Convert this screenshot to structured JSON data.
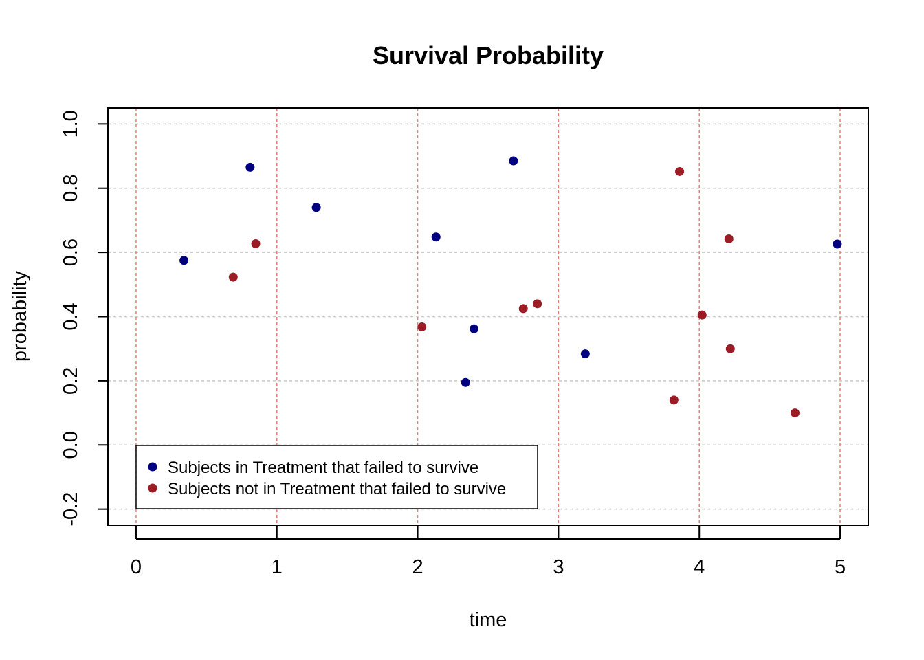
{
  "chart_data": {
    "type": "scatter",
    "title": "Survival Probability",
    "xlabel": "time",
    "ylabel": "probability",
    "xlim": [
      -0.2,
      5.2
    ],
    "ylim": [
      -0.25,
      1.05
    ],
    "x_ticks": [
      "0",
      "1",
      "2",
      "3",
      "4",
      "5"
    ],
    "y_ticks": [
      "-0.2",
      "0.0",
      "0.2",
      "0.4",
      "0.6",
      "0.8",
      "1.0"
    ],
    "x_grid_color": "#E08070",
    "y_grid_color": "#C8C8C8",
    "legend_position": "bottom-left",
    "series": [
      {
        "name": "Subjects in Treatment that failed to survive",
        "color": "#000080",
        "points": [
          {
            "x": 0.34,
            "y": 0.575
          },
          {
            "x": 0.81,
            "y": 0.865
          },
          {
            "x": 1.28,
            "y": 0.74
          },
          {
            "x": 2.13,
            "y": 0.648
          },
          {
            "x": 2.34,
            "y": 0.195
          },
          {
            "x": 2.4,
            "y": 0.362
          },
          {
            "x": 2.68,
            "y": 0.885
          },
          {
            "x": 3.19,
            "y": 0.284
          },
          {
            "x": 4.98,
            "y": 0.626
          }
        ]
      },
      {
        "name": "Subjects not in Treatment that failed to survive",
        "color": "#9B1C24",
        "points": [
          {
            "x": 0.69,
            "y": 0.523
          },
          {
            "x": 0.85,
            "y": 0.627
          },
          {
            "x": 2.03,
            "y": 0.368
          },
          {
            "x": 2.75,
            "y": 0.425
          },
          {
            "x": 2.85,
            "y": 0.44
          },
          {
            "x": 3.82,
            "y": 0.14
          },
          {
            "x": 3.86,
            "y": 0.852
          },
          {
            "x": 4.02,
            "y": 0.405
          },
          {
            "x": 4.21,
            "y": 0.642
          },
          {
            "x": 4.22,
            "y": 0.3
          },
          {
            "x": 4.68,
            "y": 0.1
          }
        ]
      }
    ]
  }
}
